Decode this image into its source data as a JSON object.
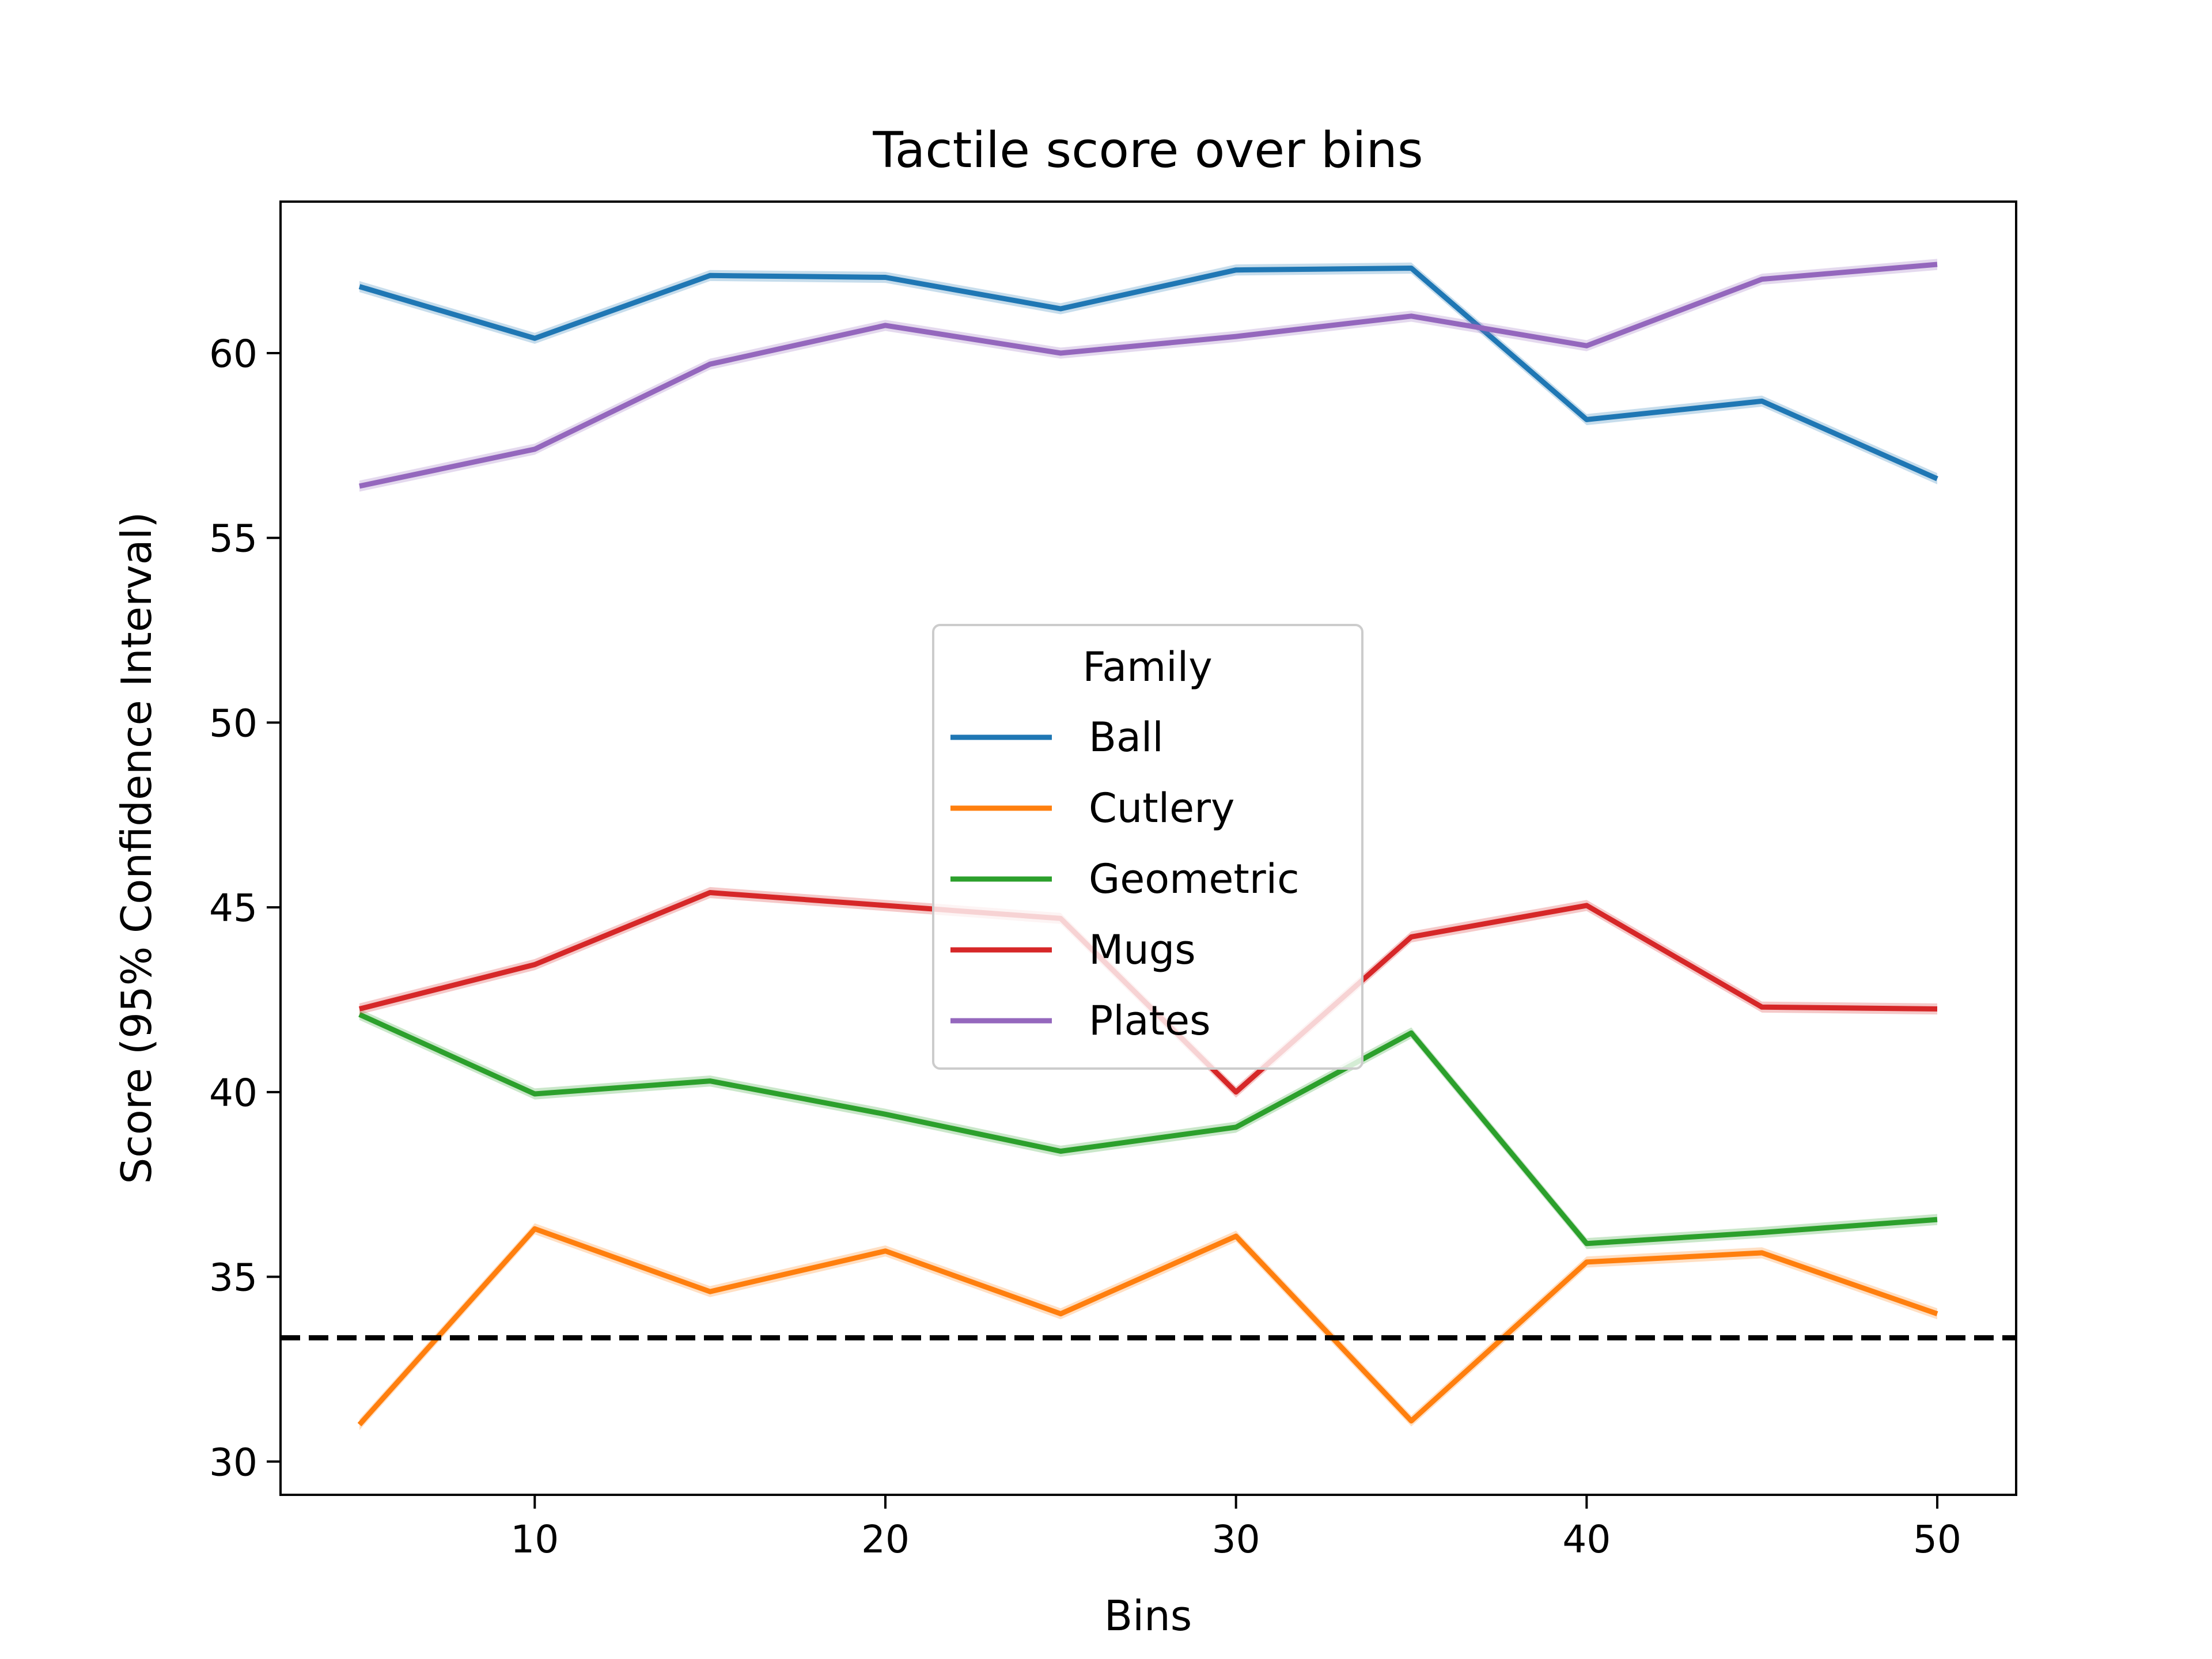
{
  "chart_data": {
    "type": "line",
    "title": "Tactile score over bins",
    "xlabel": "Bins",
    "ylabel": "Score (95% Confidence Interval)",
    "xlim": [
      2.75,
      52.25
    ],
    "ylim": [
      29.1,
      64.1
    ],
    "xticks": [
      10,
      20,
      30,
      40,
      50
    ],
    "yticks": [
      30,
      35,
      40,
      45,
      50,
      55,
      60
    ],
    "grid": false,
    "x": [
      5,
      10,
      15,
      20,
      25,
      30,
      35,
      40,
      45,
      50
    ],
    "series": [
      {
        "name": "Ball",
        "color": "#1f77b4",
        "values": [
          61.8,
          60.4,
          62.1,
          62.05,
          61.2,
          62.25,
          62.3,
          58.2,
          58.7,
          56.6
        ]
      },
      {
        "name": "Cutlery",
        "color": "#ff7f0e",
        "values": [
          31.0,
          36.3,
          34.6,
          35.7,
          34.0,
          36.1,
          31.1,
          35.4,
          35.65,
          34.0
        ]
      },
      {
        "name": "Geometric",
        "color": "#2ca02c",
        "values": [
          42.1,
          39.95,
          40.3,
          39.4,
          38.4,
          39.05,
          41.6,
          35.9,
          36.2,
          36.55
        ]
      },
      {
        "name": "Mugs",
        "color": "#d62728",
        "values": [
          42.25,
          43.45,
          45.4,
          45.05,
          44.7,
          40.0,
          44.2,
          45.05,
          42.3,
          42.25
        ]
      },
      {
        "name": "Plates",
        "color": "#9467bd",
        "values": [
          56.4,
          57.4,
          59.7,
          60.75,
          60.0,
          60.45,
          61.0,
          60.2,
          62.0,
          62.4
        ]
      }
    ],
    "reference_line": {
      "y": 33.35,
      "style": "dashed",
      "color": "#000000"
    },
    "legend": {
      "title": "Family",
      "position": "center"
    }
  }
}
